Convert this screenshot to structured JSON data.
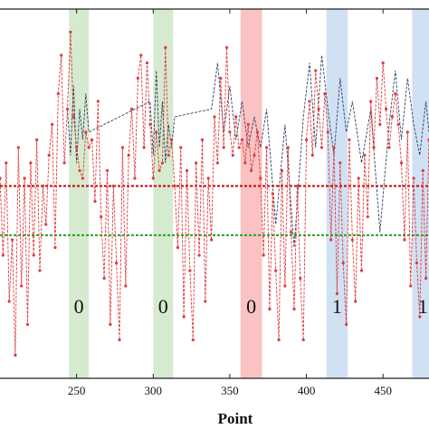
{
  "chart_data": {
    "type": "line",
    "title": "",
    "xlabel": "Point",
    "ylabel": "",
    "xlim": [
      200,
      480
    ],
    "ylim": [
      -1.2,
      1.2
    ],
    "x_ticks": [
      250,
      300,
      350,
      400,
      450
    ],
    "grid": false,
    "colors": {
      "red_series": "#e03a3a",
      "dark_series": "#2f3f66",
      "red_threshold": "#cc0000",
      "green_threshold": "#22a022",
      "green_band": "#cfe6c8",
      "red_band": "#f9b7b7",
      "blue_band": "#c9dcf2"
    },
    "thresholds": [
      {
        "color": "red",
        "y": 0.05
      },
      {
        "color": "green",
        "y": -0.27
      }
    ],
    "regions": [
      {
        "x_start": 245,
        "x_end": 258,
        "color": "green",
        "label": "0"
      },
      {
        "x_start": 300,
        "x_end": 313,
        "color": "green",
        "label": "0"
      },
      {
        "x_start": 357,
        "x_end": 371,
        "color": "red",
        "label": "0"
      },
      {
        "x_start": 413,
        "x_end": 427,
        "color": "blue",
        "label": "1"
      },
      {
        "x_start": 469,
        "x_end": 483,
        "color": "blue",
        "label": "1"
      }
    ],
    "series": [
      {
        "color": "red",
        "style": "dashed-with-markers",
        "x": [
          200,
          202,
          204,
          206,
          208,
          210,
          212,
          214,
          216,
          218,
          220,
          222,
          224,
          226,
          228,
          230,
          232,
          234,
          236,
          238,
          240,
          242,
          244,
          246,
          248,
          250,
          252,
          254,
          256,
          258,
          260,
          262,
          264,
          266,
          268,
          270,
          272,
          274,
          276,
          278,
          280,
          282,
          284,
          286,
          288,
          290,
          292,
          294,
          296,
          298,
          300,
          302,
          304,
          306,
          308,
          310,
          312,
          314,
          316,
          318,
          320,
          322,
          324,
          326,
          328,
          330,
          332,
          334,
          336,
          338,
          340,
          342,
          344,
          346,
          348,
          350,
          352,
          354,
          356,
          358,
          360,
          362,
          364,
          366,
          368,
          370,
          372,
          374,
          376,
          378,
          380,
          382,
          384,
          386,
          388,
          390,
          392,
          394,
          396,
          398,
          400,
          402,
          404,
          406,
          408,
          410,
          412,
          414,
          416,
          418,
          420,
          422,
          424,
          426,
          428,
          430,
          432,
          434,
          436,
          438,
          440,
          442,
          444,
          446,
          448,
          450,
          452,
          454,
          456,
          458,
          460,
          462,
          464,
          466,
          468,
          470,
          472,
          474,
          476,
          478,
          480
        ],
        "y": [
          0.1,
          -0.4,
          0.2,
          -0.7,
          -0.3,
          -1.05,
          0.3,
          -0.6,
          0.1,
          -0.85,
          0.2,
          -0.4,
          0.35,
          -0.5,
          0.05,
          -0.2,
          0.25,
          0.45,
          -0.35,
          0.65,
          0.9,
          0.2,
          0.55,
          1.05,
          0.5,
          0.3,
          0.15,
          0.1,
          0.4,
          0.3,
          0.35,
          -0.05,
          0.6,
          -0.15,
          -0.55,
          0.15,
          -0.85,
          0.05,
          -0.45,
          -0.95,
          0.3,
          -0.6,
          0.25,
          0.55,
          0.1,
          0.75,
          0.9,
          0.3,
          0.85,
          0.45,
          0.1,
          0.4,
          0.15,
          0.2,
          0.95,
          0.25,
          0.35,
          0.05,
          -0.35,
          0.3,
          -0.8,
          0.15,
          -0.5,
          -0.95,
          0.2,
          -0.4,
          0.35,
          -0.7,
          0.1,
          -0.3,
          0.5,
          0.2,
          0.75,
          0.3,
          0.95,
          0.4,
          0.25,
          0.5,
          0.3,
          0.35,
          0.2,
          0.45,
          0.15,
          0.25,
          0.4,
          0.1,
          -0.4,
          0.3,
          -0.75,
          0.0,
          -0.5,
          -0.95,
          0.15,
          -0.6,
          0.3,
          -0.25,
          -0.75,
          0.05,
          -0.55,
          -0.95,
          0.35,
          0.6,
          0.25,
          0.8,
          0.55,
          0.3,
          0.65,
          0.4,
          -0.3,
          0.3,
          -0.65,
          0.2,
          -0.45,
          -0.85,
          0.35,
          -0.3,
          -0.7,
          0.1,
          -0.5,
          0.25,
          -0.15,
          0.6,
          0.3,
          0.75,
          0.45,
          0.85,
          0.55,
          0.3,
          0.5,
          0.65,
          0.45,
          0.2,
          -0.3,
          0.4,
          -0.6,
          0.1,
          -0.45,
          -0.8,
          0.15,
          -0.55,
          0.35
        ]
      },
      {
        "color": "dark",
        "style": "dashed",
        "x": [
          244,
          246,
          248,
          250,
          252,
          254,
          256,
          258,
          298,
          300,
          302,
          304,
          306,
          308,
          310,
          312,
          314,
          338,
          342,
          346,
          350,
          354,
          358,
          362,
          366,
          370,
          374,
          380,
          386,
          392,
          398,
          402,
          406,
          410,
          414,
          418,
          422,
          426,
          430,
          436,
          442,
          448,
          454,
          458,
          462,
          466,
          470,
          474,
          478,
          480
        ],
        "y": [
          0.55,
          0.25,
          0.7,
          0.2,
          0.55,
          0.35,
          0.65,
          0.4,
          0.6,
          0.25,
          0.8,
          0.3,
          0.6,
          0.2,
          0.45,
          0.3,
          0.5,
          0.55,
          0.85,
          0.4,
          0.7,
          0.35,
          0.6,
          0.3,
          0.5,
          0.3,
          0.55,
          -0.2,
          0.45,
          -0.35,
          0.5,
          0.85,
          0.3,
          0.9,
          0.55,
          0.25,
          0.75,
          0.4,
          0.6,
          0.2,
          0.55,
          -0.25,
          0.45,
          0.8,
          0.35,
          0.75,
          0.45,
          0.25,
          0.6,
          0.4
        ]
      }
    ]
  }
}
